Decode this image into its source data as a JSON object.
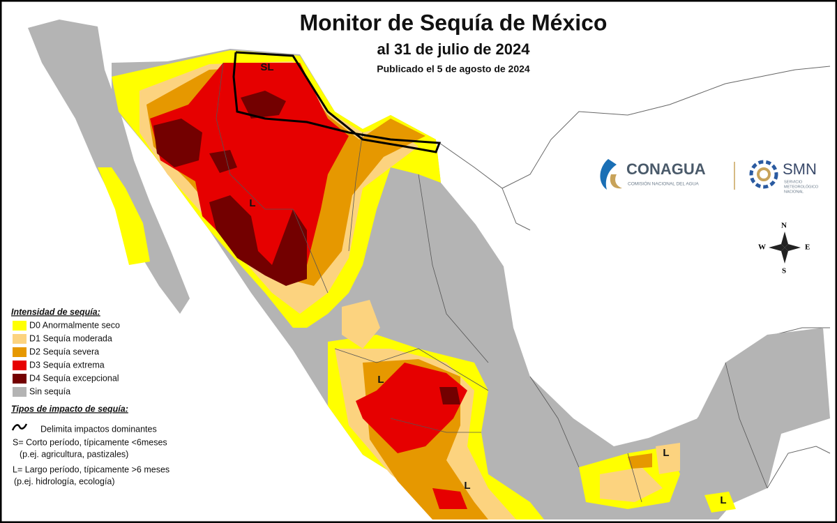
{
  "title": "Monitor de Sequía de México",
  "subtitle": "al 31 de julio de 2024",
  "published": "Publicado el 5 de agosto de 2024",
  "legend": {
    "title": "Intensidad de sequía:",
    "items": [
      {
        "label": "D0 Anormalmente seco",
        "color": "#ffff00"
      },
      {
        "label": "D1 Sequía moderada",
        "color": "#fcd37f"
      },
      {
        "label": "D2 Sequía severa",
        "color": "#e69800"
      },
      {
        "label": "D3 Sequía extrema",
        "color": "#e60000"
      },
      {
        "label": "D4 Sequía excepcional",
        "color": "#730000"
      },
      {
        "label": "Sin sequía",
        "color": "#b4b4b4"
      }
    ]
  },
  "impact": {
    "title": "Tipos de impacto de sequía:",
    "line": "Delimita impactos dominantes",
    "short": [
      "S= Corto período, típicamente <6meses",
      "(p.ej. agricultura, pastizales)"
    ],
    "long": [
      "L= Largo período, típicamente >6 meses",
      "(p.ej. hidrología, ecología)"
    ]
  },
  "logos": {
    "conagua": "CONAGUA",
    "conagua_sub": "COMISIÓN NACIONAL DEL AGUA",
    "smn": "SMN",
    "smn_sub": [
      "SERVICIO",
      "METEOROLÓGICO",
      "NACIONAL"
    ]
  },
  "compass": {
    "n": "N",
    "s": "S",
    "e": "E",
    "w": "W"
  },
  "map_labels": [
    "SL",
    "L",
    "L",
    "L",
    "L",
    "L"
  ]
}
